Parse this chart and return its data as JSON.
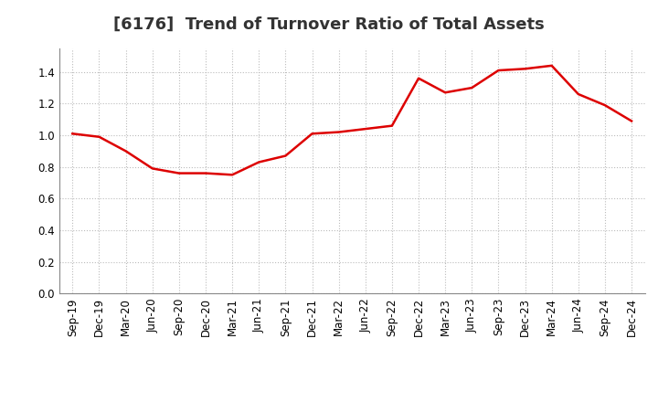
{
  "title": "[6176]  Trend of Turnover Ratio of Total Assets",
  "x_labels": [
    "Sep-19",
    "Dec-19",
    "Mar-20",
    "Jun-20",
    "Sep-20",
    "Dec-20",
    "Mar-21",
    "Jun-21",
    "Sep-21",
    "Dec-21",
    "Mar-22",
    "Jun-22",
    "Sep-22",
    "Dec-22",
    "Mar-23",
    "Jun-23",
    "Sep-23",
    "Dec-23",
    "Mar-24",
    "Jun-24",
    "Sep-24",
    "Dec-24"
  ],
  "y_values": [
    1.01,
    0.99,
    0.9,
    0.79,
    0.76,
    0.76,
    0.75,
    0.83,
    0.87,
    1.01,
    1.02,
    1.04,
    1.06,
    1.36,
    1.27,
    1.3,
    1.41,
    1.42,
    1.44,
    1.26,
    1.19,
    1.09
  ],
  "line_color": "#dd0000",
  "line_width": 1.8,
  "ylim": [
    0.0,
    1.55
  ],
  "yticks": [
    0.0,
    0.2,
    0.4,
    0.6,
    0.8,
    1.0,
    1.2,
    1.4
  ],
  "grid_color": "#bbbbbb",
  "background_color": "#ffffff",
  "title_fontsize": 13,
  "tick_fontsize": 8.5
}
